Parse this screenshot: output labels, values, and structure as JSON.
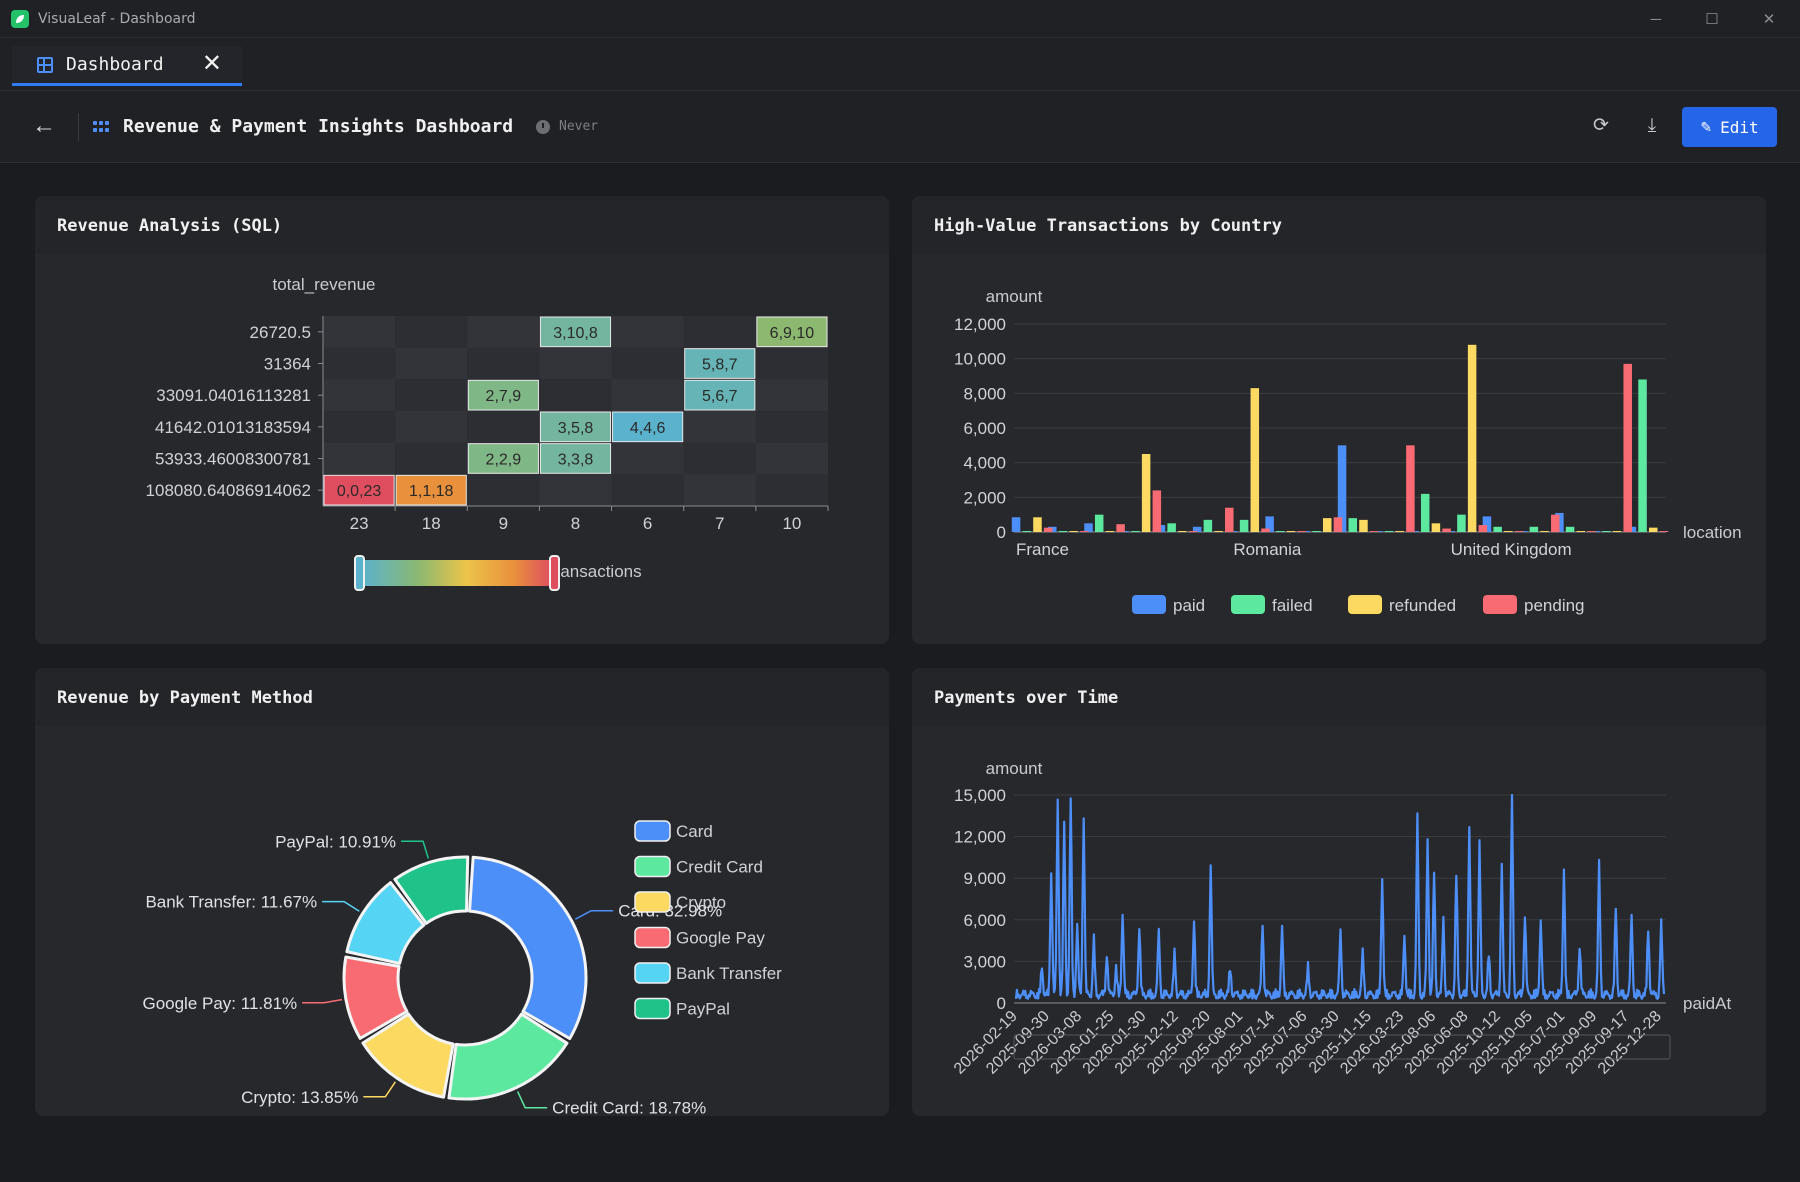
{
  "window": {
    "title": "VisuaLeaf - Dashboard"
  },
  "tab": {
    "label": "Dashboard"
  },
  "toolbar": {
    "title": "Revenue & Payment Insights Dashboard",
    "refresh_status": "Never",
    "edit_label": "Edit"
  },
  "colors": {
    "accent": "#2566e8",
    "paid": "#4d8ff8",
    "failed": "#5de8a0",
    "refunded": "#fcd960",
    "pending": "#f96b72",
    "bank": "#56d4f4",
    "paypal": "#1fc38a"
  },
  "panels": {
    "revenue_analysis": "Revenue Analysis (SQL)",
    "high_value": "High-Value Transactions by Country",
    "payment_method": "Revenue by Payment Method",
    "payments_time": "Payments over Time"
  },
  "chart_data": [
    {
      "id": "revenue_analysis",
      "type": "heatmap",
      "ylabel": "total_revenue",
      "xlabel": "total_transactions",
      "x_categories": [
        "23",
        "18",
        "9",
        "8",
        "6",
        "7",
        "10"
      ],
      "y_categories": [
        "26720.5",
        "31364",
        "33091.04016113281",
        "41642.01013183594",
        "53933.46008300781",
        "108080.64086914062"
      ],
      "cells": [
        {
          "x": 3,
          "y": 0,
          "value": 8,
          "label": "3,10,8"
        },
        {
          "x": 6,
          "y": 0,
          "value": 10,
          "label": "6,9,10"
        },
        {
          "x": 5,
          "y": 1,
          "value": 7,
          "label": "5,8,7"
        },
        {
          "x": 2,
          "y": 2,
          "value": 9,
          "label": "2,7,9"
        },
        {
          "x": 5,
          "y": 2,
          "value": 7,
          "label": "5,6,7"
        },
        {
          "x": 3,
          "y": 3,
          "value": 8,
          "label": "3,5,8"
        },
        {
          "x": 4,
          "y": 3,
          "value": 6,
          "label": "4,4,6"
        },
        {
          "x": 3,
          "y": 4,
          "value": 8,
          "label": "3,3,8"
        },
        {
          "x": 2,
          "y": 4,
          "value": 9,
          "label": "2,2,9"
        },
        {
          "x": 1,
          "y": 5,
          "value": 18,
          "label": "1,1,18"
        },
        {
          "x": 0,
          "y": 5,
          "value": 23,
          "label": "0,0,23"
        }
      ],
      "visual_map": {
        "min": 6,
        "max": 23
      }
    },
    {
      "id": "high_value",
      "type": "bar",
      "ylabel": "amount",
      "xlabel": "location",
      "ylim": [
        0,
        12000
      ],
      "yticks": [
        0,
        2000,
        4000,
        6000,
        8000,
        10000,
        12000
      ],
      "visible_x_labels": [
        {
          "index": 0,
          "label": "France"
        },
        {
          "index": 6,
          "label": "Romania"
        },
        {
          "index": 12,
          "label": "United Kingdom"
        }
      ],
      "series": [
        {
          "name": "paid",
          "values": [
            850,
            300,
            500,
            1,
            400,
            300,
            1,
            900,
            1,
            5000,
            1,
            1,
            1,
            900,
            1,
            1100,
            1,
            300
          ]
        },
        {
          "name": "failed",
          "values": [
            1,
            1,
            1000,
            1,
            500,
            700,
            700,
            1,
            1,
            800,
            1,
            2200,
            1000,
            300,
            300,
            300,
            1,
            8800
          ]
        },
        {
          "name": "refunded",
          "values": [
            850,
            1,
            1,
            4500,
            1,
            1,
            8300,
            1,
            800,
            700,
            1,
            500,
            10800,
            1,
            1,
            1,
            1,
            250
          ]
        },
        {
          "name": "pending",
          "values": [
            250,
            1,
            450,
            2400,
            1,
            1400,
            200,
            1,
            850,
            1,
            5000,
            200,
            400,
            1,
            1000,
            1,
            9700,
            1
          ]
        }
      ],
      "legend": "bottom"
    },
    {
      "id": "payment_method",
      "type": "pie",
      "donut": true,
      "slices": [
        {
          "name": "Card",
          "value": 32.98,
          "label": "Card: 32.98%"
        },
        {
          "name": "Credit Card",
          "value": 18.78,
          "label": "Credit Card: 18.78%"
        },
        {
          "name": "Crypto",
          "value": 13.85,
          "label": "Crypto: 13.85%"
        },
        {
          "name": "Google Pay",
          "value": 11.81,
          "label": "Google Pay: 11.81%"
        },
        {
          "name": "Bank Transfer",
          "value": 11.67,
          "label": "Bank Transfer: 11.67%"
        },
        {
          "name": "PayPal",
          "value": 10.91,
          "label": "PayPal: 10.91%"
        }
      ],
      "legend": "right"
    },
    {
      "id": "payments_time",
      "type": "line",
      "ylabel": "amount",
      "xlabel": "paidAt",
      "ylim": [
        0,
        15000
      ],
      "yticks": [
        0,
        3000,
        6000,
        9000,
        12000,
        15000
      ],
      "x_labels": [
        "2026-02-19",
        "2025-09-30",
        "2026-03-08",
        "2026-01-25",
        "2026-01-30",
        "2025-12-12",
        "2025-09-20",
        "2025-08-01",
        "2025-07-14",
        "2025-07-06",
        "2026-03-30",
        "2025-11-15",
        "2026-03-23",
        "2025-08-06",
        "2026-06-08",
        "2025-10-12",
        "2025-10-05",
        "2025-07-01",
        "2025-09-09",
        "2025-09-17",
        "2025-12-28"
      ],
      "spikes": [
        {
          "pos": 0.04,
          "value": 2000
        },
        {
          "pos": 0.055,
          "value": 9000
        },
        {
          "pos": 0.065,
          "value": 14000
        },
        {
          "pos": 0.075,
          "value": 12500
        },
        {
          "pos": 0.085,
          "value": 14300
        },
        {
          "pos": 0.095,
          "value": 5000
        },
        {
          "pos": 0.105,
          "value": 12800
        },
        {
          "pos": 0.12,
          "value": 4000
        },
        {
          "pos": 0.14,
          "value": 3000
        },
        {
          "pos": 0.155,
          "value": 2000
        },
        {
          "pos": 0.165,
          "value": 6000
        },
        {
          "pos": 0.19,
          "value": 5000
        },
        {
          "pos": 0.22,
          "value": 4500
        },
        {
          "pos": 0.245,
          "value": 3000
        },
        {
          "pos": 0.275,
          "value": 5500
        },
        {
          "pos": 0.3,
          "value": 9200
        },
        {
          "pos": 0.33,
          "value": 2000
        },
        {
          "pos": 0.38,
          "value": 5200
        },
        {
          "pos": 0.41,
          "value": 4800
        },
        {
          "pos": 0.45,
          "value": 2000
        },
        {
          "pos": 0.5,
          "value": 4500
        },
        {
          "pos": 0.535,
          "value": 3000
        },
        {
          "pos": 0.565,
          "value": 8600
        },
        {
          "pos": 0.6,
          "value": 4300
        },
        {
          "pos": 0.62,
          "value": 12800
        },
        {
          "pos": 0.635,
          "value": 11200
        },
        {
          "pos": 0.645,
          "value": 9000
        },
        {
          "pos": 0.66,
          "value": 5500
        },
        {
          "pos": 0.68,
          "value": 8800
        },
        {
          "pos": 0.7,
          "value": 12200
        },
        {
          "pos": 0.715,
          "value": 10800
        },
        {
          "pos": 0.73,
          "value": 3000
        },
        {
          "pos": 0.75,
          "value": 9300
        },
        {
          "pos": 0.765,
          "value": 14200
        },
        {
          "pos": 0.785,
          "value": 5800
        },
        {
          "pos": 0.81,
          "value": 5400
        },
        {
          "pos": 0.845,
          "value": 9200
        },
        {
          "pos": 0.87,
          "value": 3600
        },
        {
          "pos": 0.9,
          "value": 9400
        },
        {
          "pos": 0.925,
          "value": 6300
        },
        {
          "pos": 0.95,
          "value": 5600
        },
        {
          "pos": 0.975,
          "value": 4800
        },
        {
          "pos": 0.995,
          "value": 5100
        }
      ]
    }
  ]
}
